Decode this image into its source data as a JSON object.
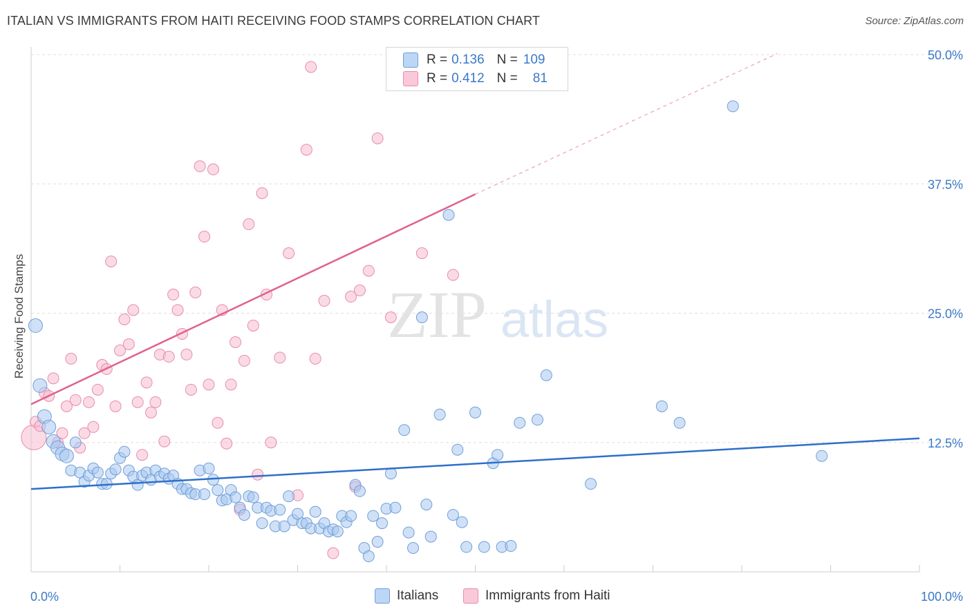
{
  "title": "ITALIAN VS IMMIGRANTS FROM HAITI RECEIVING FOOD STAMPS CORRELATION CHART",
  "source": "Source: ZipAtlas.com",
  "legend": {
    "rows": [
      {
        "r_label": "R =",
        "r_value": "0.136",
        "n_label": "N =",
        "n_value": "109"
      },
      {
        "r_label": "R =",
        "r_value": "0.412",
        "n_label": "N =",
        "n_value": "81"
      }
    ]
  },
  "bottom_legend": [
    "Italians",
    "Immigrants from Haiti"
  ],
  "watermark": {
    "zip": "ZIP",
    "atlas": "atlas"
  },
  "chart_data": {
    "type": "scatter",
    "title": "ITALIAN VS IMMIGRANTS FROM HAITI RECEIVING FOOD STAMPS CORRELATION CHART",
    "xlabel": "",
    "ylabel": "Receiving Food Stamps",
    "xlim": [
      0,
      100
    ],
    "ylim": [
      0,
      50
    ],
    "x_tick_labels": [
      "0.0%",
      "100.0%"
    ],
    "y_ticks": [
      12.5,
      25.0,
      37.5,
      50.0
    ],
    "y_tick_labels": [
      "12.5%",
      "25.0%",
      "37.5%",
      "50.0%"
    ],
    "colors": {
      "italians": "#a9c9f0",
      "italians_stroke": "#6f9fd8",
      "italians_line": "#2d6fcb",
      "haiti": "#f6bdd0",
      "haiti_stroke": "#e98aab",
      "haiti_line": "#e0608e",
      "axis_text": "#3a78c9"
    },
    "series": [
      {
        "name": "Italians",
        "r": 0.136,
        "n": 109,
        "trend": {
          "x0": 0,
          "y0": 8.0,
          "x1": 100,
          "y1": 12.9
        },
        "points": [
          [
            0.5,
            23.8
          ],
          [
            1,
            18
          ],
          [
            1.5,
            15
          ],
          [
            2,
            14
          ],
          [
            2.5,
            12.6
          ],
          [
            3,
            12
          ],
          [
            3.5,
            11.4
          ],
          [
            4,
            11.2
          ],
          [
            5,
            12.5
          ],
          [
            4.5,
            9.8
          ],
          [
            5.5,
            9.6
          ],
          [
            6,
            8.7
          ],
          [
            6.5,
            9.3
          ],
          [
            7,
            10
          ],
          [
            7.5,
            9.6
          ],
          [
            8,
            8.5
          ],
          [
            8.5,
            8.5
          ],
          [
            9,
            9.5
          ],
          [
            9.5,
            9.9
          ],
          [
            10,
            11
          ],
          [
            10.5,
            11.6
          ],
          [
            11,
            9.8
          ],
          [
            11.5,
            9.2
          ],
          [
            12,
            8.4
          ],
          [
            12.5,
            9.3
          ],
          [
            13,
            9.6
          ],
          [
            13.5,
            8.9
          ],
          [
            14,
            9.8
          ],
          [
            14.5,
            9.2
          ],
          [
            15,
            9.5
          ],
          [
            15.5,
            9
          ],
          [
            16,
            9.3
          ],
          [
            16.5,
            8.5
          ],
          [
            17,
            8
          ],
          [
            17.5,
            8
          ],
          [
            18,
            7.6
          ],
          [
            18.5,
            7.5
          ],
          [
            19,
            9.8
          ],
          [
            19.5,
            7.5
          ],
          [
            20,
            10
          ],
          [
            20.5,
            8.9
          ],
          [
            21,
            7.9
          ],
          [
            21.5,
            6.9
          ],
          [
            22,
            7
          ],
          [
            22.5,
            7.9
          ],
          [
            23,
            7.2
          ],
          [
            23.5,
            6.2
          ],
          [
            24,
            5.5
          ],
          [
            24.5,
            7.3
          ],
          [
            25,
            7.2
          ],
          [
            25.5,
            6.2
          ],
          [
            26,
            4.7
          ],
          [
            26.5,
            6.2
          ],
          [
            27,
            5.9
          ],
          [
            27.5,
            4.4
          ],
          [
            28,
            6
          ],
          [
            28.5,
            4.4
          ],
          [
            29,
            7.3
          ],
          [
            29.5,
            5
          ],
          [
            30,
            5.6
          ],
          [
            30.5,
            4.7
          ],
          [
            31,
            4.7
          ],
          [
            31.5,
            4.2
          ],
          [
            32,
            5.8
          ],
          [
            32.5,
            4.2
          ],
          [
            33,
            4.7
          ],
          [
            33.5,
            3.9
          ],
          [
            34,
            4.1
          ],
          [
            34.5,
            3.9
          ],
          [
            35,
            5.4
          ],
          [
            35.5,
            4.8
          ],
          [
            36,
            5.4
          ],
          [
            36.5,
            8.4
          ],
          [
            37,
            7.8
          ],
          [
            37.5,
            2.3
          ],
          [
            38,
            1.5
          ],
          [
            38.5,
            5.4
          ],
          [
            39,
            2.9
          ],
          [
            39.5,
            4.7
          ],
          [
            40,
            6.1
          ],
          [
            40.5,
            9.5
          ],
          [
            41,
            6.2
          ],
          [
            42,
            13.7
          ],
          [
            42.5,
            3.8
          ],
          [
            43,
            2.3
          ],
          [
            44,
            24.6
          ],
          [
            44.5,
            6.5
          ],
          [
            45,
            3.4
          ],
          [
            46,
            15.2
          ],
          [
            47,
            34.5
          ],
          [
            47.5,
            5.5
          ],
          [
            48,
            11.8
          ],
          [
            48.5,
            4.8
          ],
          [
            49,
            2.4
          ],
          [
            50,
            15.4
          ],
          [
            51,
            2.4
          ],
          [
            52,
            10.5
          ],
          [
            52.5,
            11.3
          ],
          [
            53,
            2.4
          ],
          [
            54,
            2.5
          ],
          [
            55,
            14.4
          ],
          [
            57,
            14.7
          ],
          [
            58,
            19
          ],
          [
            63,
            8.5
          ],
          [
            71,
            16
          ],
          [
            73,
            14.4
          ],
          [
            79,
            45
          ],
          [
            89,
            11.2
          ]
        ]
      },
      {
        "name": "Immigrants from Haiti",
        "r": 0.412,
        "n": 81,
        "trend": {
          "x0": 0,
          "y0": 16.2,
          "x1": 50,
          "y1": 36.5
        },
        "trend_dashed": {
          "x0": 50,
          "y0": 36.5,
          "x1": 84,
          "y1": 50.1
        },
        "points": [
          [
            0.3,
            13
          ],
          [
            0.5,
            14.5
          ],
          [
            1,
            14.1
          ],
          [
            1.5,
            17.3
          ],
          [
            2,
            17
          ],
          [
            2.5,
            18.7
          ],
          [
            3,
            12.5
          ],
          [
            3.5,
            13.4
          ],
          [
            4,
            16
          ],
          [
            4.5,
            20.6
          ],
          [
            5,
            16.6
          ],
          [
            5.5,
            12
          ],
          [
            6,
            13.4
          ],
          [
            6.5,
            16.4
          ],
          [
            7,
            14
          ],
          [
            7.5,
            17.6
          ],
          [
            8,
            20
          ],
          [
            8.5,
            19.6
          ],
          [
            9,
            30
          ],
          [
            9.5,
            16
          ],
          [
            10,
            21.4
          ],
          [
            10.5,
            24.4
          ],
          [
            11,
            22
          ],
          [
            11.5,
            25.3
          ],
          [
            12,
            16.4
          ],
          [
            12.5,
            11.3
          ],
          [
            13,
            18.3
          ],
          [
            13.5,
            15.4
          ],
          [
            14,
            16.4
          ],
          [
            14.5,
            21
          ],
          [
            15,
            12.6
          ],
          [
            15.5,
            20.8
          ],
          [
            16,
            26.8
          ],
          [
            16.5,
            25.3
          ],
          [
            17,
            23
          ],
          [
            17.5,
            21
          ],
          [
            18,
            17.6
          ],
          [
            18.5,
            27
          ],
          [
            19,
            39.2
          ],
          [
            19.5,
            32.4
          ],
          [
            20,
            18.1
          ],
          [
            20.5,
            38.9
          ],
          [
            21,
            14.4
          ],
          [
            21.5,
            25.3
          ],
          [
            22,
            12.4
          ],
          [
            22.5,
            18.1
          ],
          [
            23,
            22.2
          ],
          [
            23.5,
            6
          ],
          [
            24,
            20.4
          ],
          [
            24.5,
            33.6
          ],
          [
            25,
            23.8
          ],
          [
            25.5,
            9.4
          ],
          [
            26,
            36.6
          ],
          [
            26.5,
            26.8
          ],
          [
            27,
            12.5
          ],
          [
            28,
            20.7
          ],
          [
            29,
            30.8
          ],
          [
            30,
            7.4
          ],
          [
            31,
            40.8
          ],
          [
            31.5,
            48.8
          ],
          [
            32,
            20.6
          ],
          [
            33,
            26.2
          ],
          [
            34,
            1.8
          ],
          [
            36,
            26.6
          ],
          [
            36.5,
            8.2
          ],
          [
            37,
            27.2
          ],
          [
            38,
            29.1
          ],
          [
            39,
            41.9
          ],
          [
            40.5,
            24.6
          ],
          [
            44,
            30.8
          ],
          [
            47.5,
            28.7
          ]
        ]
      }
    ]
  }
}
